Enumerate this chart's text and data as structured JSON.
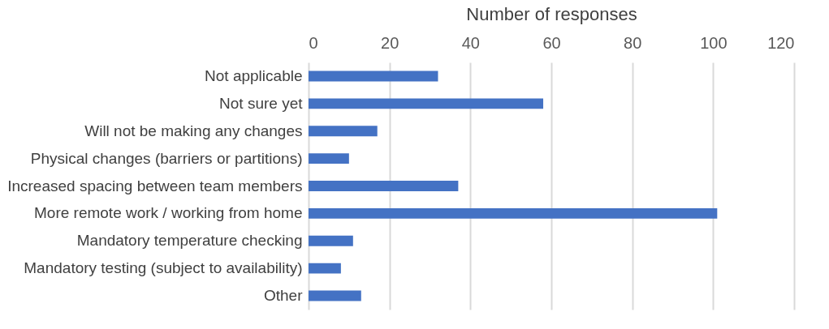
{
  "chart_data": {
    "type": "bar",
    "orientation": "horizontal",
    "xlabel": "Number of responses",
    "categories": [
      "Not applicable",
      "Not sure yet",
      "Will not be making any changes",
      "Physical changes (barriers or partitions)",
      "Increased spacing between team members",
      "More remote work / working from home",
      "Mandatory temperature checking",
      "Mandatory testing (subject to availability)",
      "Other"
    ],
    "values": [
      32,
      58,
      17,
      10,
      37,
      101,
      11,
      8,
      13
    ],
    "color": "#4472c4",
    "xlim": [
      0,
      120
    ],
    "xticks": [
      0,
      20,
      40,
      60,
      80,
      100,
      120
    ],
    "grid": "x"
  }
}
